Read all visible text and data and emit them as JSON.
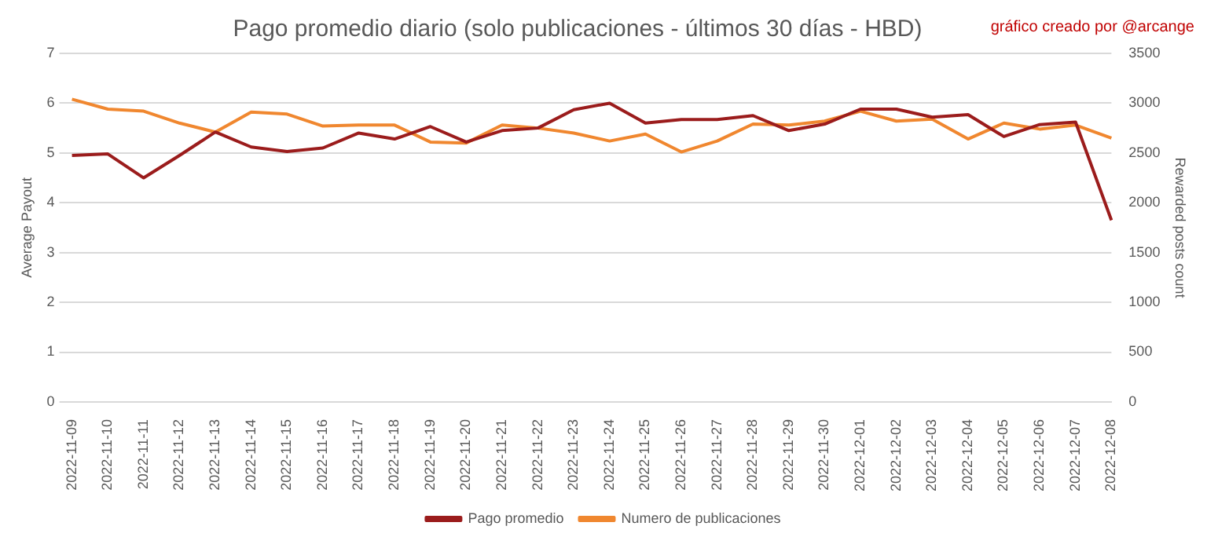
{
  "chart_data": {
    "type": "line",
    "title": "Pago promedio diario (solo publicaciones - últimos 30 días - HBD)",
    "annotations": [
      "gráfico creado por @arcange"
    ],
    "ylabel": "Average Payout",
    "y2label": "Rewarded posts count",
    "categories": [
      "2022-11-09",
      "2022-11-10",
      "2022-11-11",
      "2022-11-12",
      "2022-11-13",
      "2022-11-14",
      "2022-11-15",
      "2022-11-16",
      "2022-11-17",
      "2022-11-18",
      "2022-11-19",
      "2022-11-20",
      "2022-11-21",
      "2022-11-22",
      "2022-11-23",
      "2022-11-24",
      "2022-11-25",
      "2022-11-26",
      "2022-11-27",
      "2022-11-28",
      "2022-11-29",
      "2022-11-30",
      "2022-12-01",
      "2022-12-02",
      "2022-12-03",
      "2022-12-04",
      "2022-12-05",
      "2022-12-06",
      "2022-12-07",
      "2022-12-08"
    ],
    "series": [
      {
        "name": "Pago promedio",
        "color": "#9b1c1c",
        "values": [
          4.95,
          4.98,
          4.5,
          4.95,
          5.42,
          5.12,
          5.03,
          5.1,
          5.4,
          5.28,
          5.53,
          5.22,
          5.45,
          5.5,
          5.87,
          6.0,
          5.6,
          5.67,
          5.67,
          5.75,
          5.45,
          5.58,
          5.88,
          5.88,
          5.72,
          5.77,
          5.33,
          5.57,
          5.62,
          3.65
        ]
      },
      {
        "name": "Numero de publicaciones",
        "color": "#f0872f",
        "axis": "y2",
        "values": [
          3040,
          2940,
          2920,
          2800,
          2710,
          2910,
          2890,
          2770,
          2780,
          2780,
          2610,
          2600,
          2780,
          2750,
          2700,
          2620,
          2690,
          2510,
          2620,
          2790,
          2780,
          2820,
          2920,
          2820,
          2840,
          2640,
          2800,
          2740,
          2780,
          2650
        ]
      }
    ],
    "ylim": [
      0,
      7
    ],
    "yticks": [
      0,
      1,
      2,
      3,
      4,
      5,
      6,
      7
    ],
    "y2lim": [
      0,
      3500
    ],
    "y2ticks": [
      0,
      500,
      1000,
      1500,
      2000,
      2500,
      3000,
      3500
    ],
    "grid": "y",
    "legend": "bottom",
    "marker": "none",
    "line_style": "solid"
  }
}
